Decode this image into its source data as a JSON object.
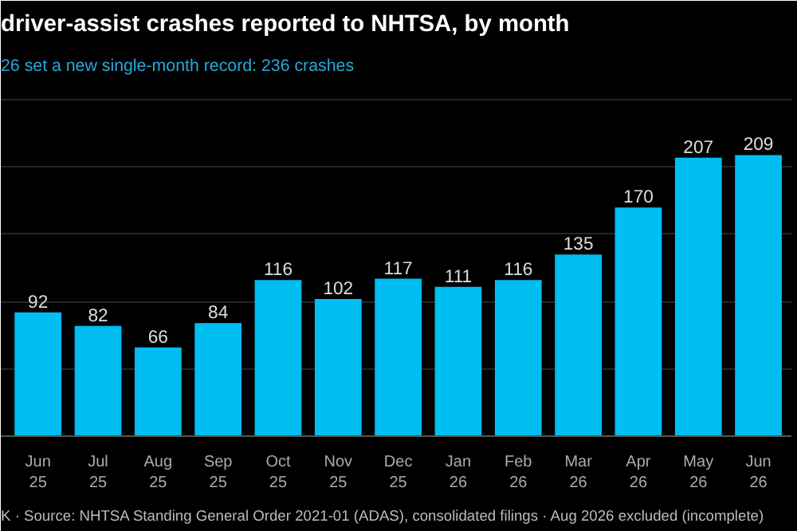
{
  "chart_data": {
    "type": "bar",
    "title": "driver-assist crashes reported to NHTSA, by month",
    "subtitle": "26 set a new single-month record: 236 crashes",
    "categories": [
      "Jun\n25",
      "Jul\n25",
      "Aug\n25",
      "Sep\n25",
      "Oct\n25",
      "Nov\n25",
      "Dec\n25",
      "Jan\n26",
      "Feb\n26",
      "Mar\n26",
      "Apr\n26",
      "May\n26",
      "Jun\n26"
    ],
    "values": [
      92,
      82,
      66,
      84,
      116,
      102,
      117,
      111,
      116,
      135,
      170,
      207,
      209
    ],
    "color": "#00bdf2",
    "data_labels": true,
    "grid": "y",
    "tick_labels": "x",
    "ylim": [
      0,
      262
    ],
    "yticks": [
      {
        "value": 50,
        "label": null
      },
      {
        "value": 100,
        "label": null
      },
      {
        "value": 150,
        "label": null
      },
      {
        "value": 200,
        "label": null
      },
      {
        "value": 250,
        "label": null
      }
    ],
    "annotations": [
      "K · Source: NHTSA Standing General Order 2021-01 (ADAS), consolidated filings · Aug 2026 excluded (incomplete)"
    ]
  }
}
